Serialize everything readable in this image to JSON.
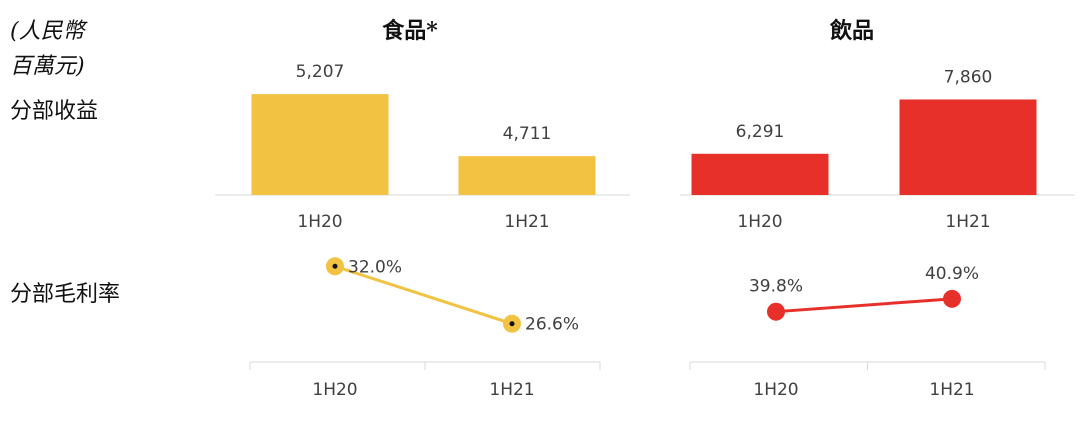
{
  "unit_label": [
    "(人民幣",
    "百萬元)"
  ],
  "row_labels": [
    "分部收益",
    "分部毛利率"
  ],
  "chart_data": [
    {
      "type": "bar",
      "title": "食品*",
      "categories": [
        "1H20",
        "1H21"
      ],
      "values": [
        5207,
        4711
      ],
      "value_labels": [
        "5,207",
        "4,711"
      ],
      "color": "#f2c342",
      "ylim": [
        4400,
        5480
      ]
    },
    {
      "type": "bar",
      "title": "飲品",
      "categories": [
        "1H20",
        "1H21"
      ],
      "values": [
        6291,
        7860
      ],
      "value_labels": [
        "6,291",
        "7,860"
      ],
      "color": "#e8302a",
      "ylim": [
        5100,
        9000
      ]
    },
    {
      "type": "line",
      "categories": [
        "1H20",
        "1H21"
      ],
      "values": [
        32.0,
        26.6
      ],
      "value_labels": [
        "32.0%",
        "26.6%"
      ],
      "color": "#f2c342",
      "ylim": [
        23,
        34
      ]
    },
    {
      "type": "line",
      "categories": [
        "1H20",
        "1H21"
      ],
      "values": [
        39.8,
        40.9
      ],
      "value_labels": [
        "39.8%",
        "40.9%"
      ],
      "color": "#e8302a",
      "ylim": [
        35.5,
        45.5
      ]
    }
  ]
}
